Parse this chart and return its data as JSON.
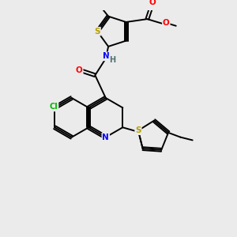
{
  "background_color": "#ebebeb",
  "bond_color": "#000000",
  "atom_colors": {
    "S": "#b8a000",
    "N": "#0000ff",
    "O": "#ff0000",
    "Cl": "#00bb00",
    "H": "#507070",
    "C": "#000000"
  },
  "figsize": [
    3.0,
    3.0
  ],
  "dpi": 100
}
